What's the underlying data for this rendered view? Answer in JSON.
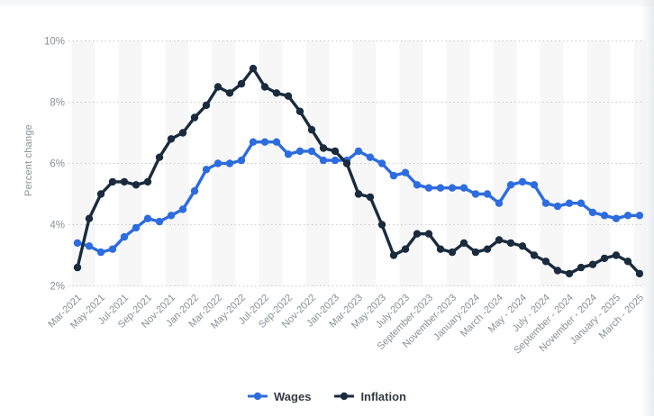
{
  "chart_data": {
    "type": "line",
    "title": "",
    "ylabel": "Percent change",
    "ylim": [
      2,
      10
    ],
    "ytick_values": [
      2,
      4,
      6,
      8,
      10
    ],
    "ytick_labels": [
      "2%",
      "4%",
      "6%",
      "8%",
      "10%"
    ],
    "grid": "horizontal-dotted",
    "legend_position": "bottom",
    "points_per_series": 49,
    "x_tick_every": 2,
    "x_tick_labels": [
      "Mar-2021",
      "May-2021",
      "Jul-2021",
      "Sep-2021",
      "Nov-2021",
      "Jan-2022",
      "Mar-2022",
      "May-2022",
      "Jul-2022",
      "Sep-2022",
      "Nov-2022",
      "Jan-2023",
      "Mar-2023",
      "May-2023",
      "July-2023",
      "September-2023",
      "November-2023",
      "January-2024",
      "March -2024",
      "May - 2024",
      "July - 2024",
      "September - 2024",
      "November - 2024",
      "January - 2025",
      "March - 2025"
    ],
    "series": [
      {
        "name": "Wages",
        "color": "#2d6cdf",
        "values": [
          3.4,
          3.3,
          3.1,
          3.2,
          3.6,
          3.9,
          4.2,
          4.1,
          4.3,
          4.5,
          5.1,
          5.8,
          6.0,
          6.0,
          6.1,
          6.7,
          6.7,
          6.7,
          6.3,
          6.4,
          6.4,
          6.1,
          6.1,
          6.1,
          6.4,
          6.2,
          6.0,
          5.6,
          5.7,
          5.3,
          5.2,
          5.2,
          5.2,
          5.2,
          5.0,
          5.0,
          4.7,
          5.3,
          5.4,
          5.3,
          4.7,
          4.6,
          4.7,
          4.7,
          4.4,
          4.3,
          4.2,
          4.3,
          4.3
        ]
      },
      {
        "name": "Inflation",
        "color": "#1a2b3e",
        "values": [
          2.6,
          4.2,
          5.0,
          5.4,
          5.4,
          5.3,
          5.4,
          6.2,
          6.8,
          7.0,
          7.5,
          7.9,
          8.5,
          8.3,
          8.6,
          9.1,
          8.5,
          8.3,
          8.2,
          7.7,
          7.1,
          6.5,
          6.4,
          6.0,
          5.0,
          4.9,
          4.0,
          3.0,
          3.2,
          3.7,
          3.7,
          3.2,
          3.1,
          3.4,
          3.1,
          3.2,
          3.5,
          3.4,
          3.3,
          3.0,
          2.8,
          2.5,
          2.4,
          2.6,
          2.7,
          2.9,
          3.0,
          2.8,
          2.4
        ]
      }
    ],
    "stripe_color": "#f7f7f8",
    "gridline_color": "#cbcbcb",
    "axis_text_color": "#8a8f96"
  }
}
